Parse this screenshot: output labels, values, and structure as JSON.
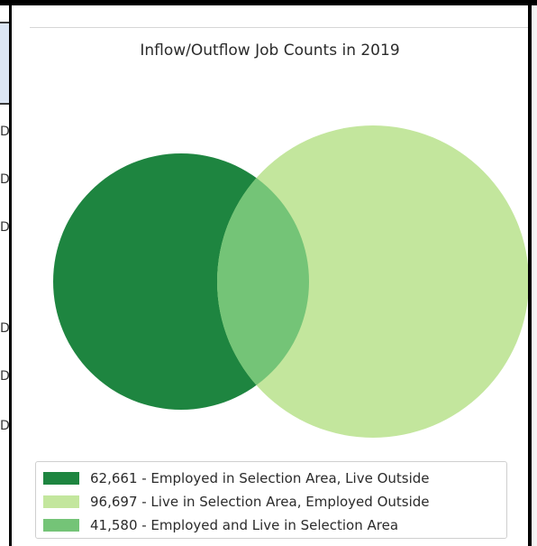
{
  "chart_data": {
    "type": "venn",
    "title": "Inflow/Outflow Job Counts in 2019",
    "sets": [
      {
        "key": "employed_live_outside",
        "value": 62661,
        "color": "#1e8540",
        "legend": "62,661 - Employed in Selection Area, Live Outside"
      },
      {
        "key": "live_employed_outside",
        "value": 96697,
        "color": "#c3e69d",
        "legend": "96,697 - Live in Selection Area, Employed Outside"
      },
      {
        "key": "employed_and_live",
        "value": 41580,
        "color": "#74c477",
        "legend": "41,580 - Employed and Live in Selection Area"
      }
    ],
    "legend_position": "bottom"
  }
}
